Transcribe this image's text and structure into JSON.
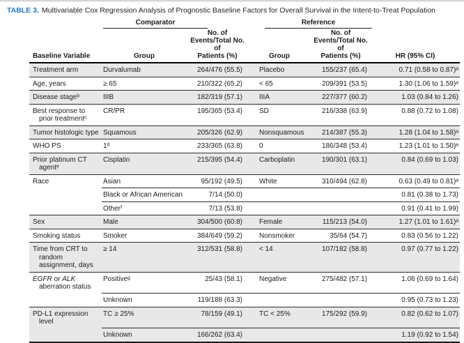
{
  "table": {
    "label": "TABLE 3.",
    "title": "Multivariable Cox Regression Analysis of Prognostic Baseline Factors for Overall Survival in the Intent-to-Treat Population",
    "spanners": {
      "comparator": "Comparator",
      "reference": "Reference"
    },
    "headers": {
      "baseline_variable": "Baseline Variable",
      "group": "Group",
      "events": "No. of Events/Total No. of\nPatients (%)",
      "ref_group": "Group",
      "ref_events": "No. of Events/Total No. of\nPatients (%)",
      "hr": "HR (95% CI)"
    },
    "colors": {
      "title_accent": "#2878b8",
      "row_shade": "#e8e8e8"
    },
    "rows": [
      {
        "variable": "Treatment arm",
        "group": "Durvalumab",
        "events": "264/476 (55.5)",
        "ref_group": "Placebo",
        "ref_events": "155/237 (65.4)",
        "hr": "0.71 (0.58 to 0.87)ᵃ"
      },
      {
        "variable": "Age, years",
        "group": "≥ 65",
        "events": "210/322 (65.2)",
        "ref_group": "< 65",
        "ref_events": "209/391 (53.5)",
        "hr": "1.30 (1.06 to 1.59)ᵃ"
      },
      {
        "variable": "Disease stageᵇ",
        "group": "IIIB",
        "events": "182/319 (57.1)",
        "ref_group": "IIIA",
        "ref_events": "227/377 (60.2)",
        "hr": "1.03 (0.84 to 1.26)"
      },
      {
        "variable": "Best response to prior treatmentᶜ",
        "group": "CR/PR",
        "events": "195/365 (53.4)",
        "ref_group": "SD",
        "ref_events": "216/338 (63.9)",
        "hr": "0.88 (0.72 to 1.08)"
      },
      {
        "variable": "Tumor histologic type",
        "group": "Squamous",
        "events": "205/326 (62.9)",
        "ref_group": "Nonsquamous",
        "ref_events": "214/387 (55.3)",
        "hr": "1.28 (1.04 to 1.58)ᵃ"
      },
      {
        "variable": "WHO PS",
        "group": "1ᵈ",
        "events": "233/365 (63.8)",
        "ref_group": "0",
        "ref_events": "186/348 (53.4)",
        "hr": "1.23 (1.01 to 1.50)ᵃ"
      },
      {
        "variable": "Prior platinum CT agentᵉ",
        "group": "Cisplatin",
        "events": "215/395 (54.4)",
        "ref_group": "Carboplatin",
        "ref_events": "190/301 (63.1)",
        "hr": "0.84 (0.69 to 1.03)"
      },
      {
        "variable": "Race",
        "group": "Asian",
        "events": "95/192 (49.5)",
        "ref_group": "White",
        "ref_events": "310/494 (62.8)",
        "hr": "0.63 (0.49 to 0.81)ᵃ"
      },
      {
        "variable": "",
        "group": "Black or African American",
        "events": "7/14 (50.0)",
        "ref_group": "",
        "ref_events": "",
        "hr": "0.81 (0.38 to 1.73)"
      },
      {
        "variable": "",
        "group": "Otherᶠ",
        "events": "7/13 (53.8)",
        "ref_group": "",
        "ref_events": "",
        "hr": "0.91 (0.41 to 1.99)"
      },
      {
        "variable": "Sex",
        "group": "Male",
        "events": "304/500 (60.8)",
        "ref_group": "Female",
        "ref_events": "115/213 (54.0)",
        "hr": "1.27 (1.01 to 1.61)ᵃ"
      },
      {
        "variable": "Smoking status",
        "group": "Smoker",
        "events": "384/649 (59.2)",
        "ref_group": "Nonsmoker",
        "ref_events": "35/64 (54.7)",
        "hr": "0.83 (0.56 to 1.22)"
      },
      {
        "variable": "Time from CRT to random assignment, days",
        "group": "≥ 14",
        "events": "312/531 (58.8)",
        "ref_group": "< 14",
        "ref_events": "107/182 (58.8)",
        "hr": "0.97 (0.77 to 1.22)"
      },
      {
        "variable_parts": {
          "italic_1": "EGFR",
          "middle": " or ",
          "italic_2": "ALK",
          "rest": " aberration status"
        },
        "group": "Positiveᵍ",
        "events": "25/43 (58.1)",
        "ref_group": "Negative",
        "ref_events": "275/482 (57.1)",
        "hr": "1.06 (0.69 to 1.64)"
      },
      {
        "variable": "",
        "group": "Unknown",
        "events": "119/188 (63.3)",
        "ref_group": "",
        "ref_events": "",
        "hr": "0.95 (0.73 to 1.23)"
      },
      {
        "variable": "PD-L1 expression level",
        "group": "TC ≥ 25%",
        "events": "78/159 (49.1)",
        "ref_group": "TC < 25%",
        "ref_events": "175/292 (59.9)",
        "hr": "0.82 (0.62 to 1.07)"
      },
      {
        "variable": "",
        "group": "Unknown",
        "events": "166/262 (63.4)",
        "ref_group": "",
        "ref_events": "",
        "hr": "1.19 (0.92 to 1.54)"
      }
    ]
  }
}
